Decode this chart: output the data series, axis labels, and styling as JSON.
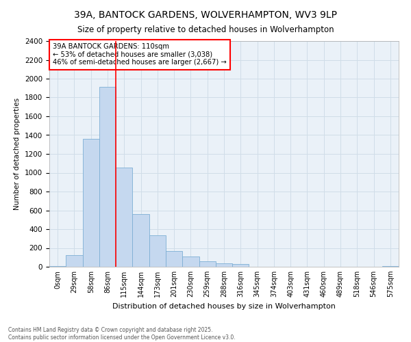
{
  "title": "39A, BANTOCK GARDENS, WOLVERHAMPTON, WV3 9LP",
  "subtitle": "Size of property relative to detached houses in Wolverhampton",
  "xlabel": "Distribution of detached houses by size in Wolverhampton",
  "ylabel": "Number of detached properties",
  "bar_color": "#c5d8ef",
  "bar_edge_color": "#7dafd4",
  "background_color": "#eaf1f8",
  "grid_color": "#d0dde8",
  "bin_labels": [
    "0sqm",
    "29sqm",
    "58sqm",
    "86sqm",
    "115sqm",
    "144sqm",
    "173sqm",
    "201sqm",
    "230sqm",
    "259sqm",
    "288sqm",
    "316sqm",
    "345sqm",
    "374sqm",
    "403sqm",
    "431sqm",
    "460sqm",
    "489sqm",
    "518sqm",
    "546sqm",
    "575sqm"
  ],
  "bar_values": [
    10,
    125,
    1360,
    1910,
    1055,
    560,
    335,
    170,
    110,
    60,
    35,
    28,
    0,
    0,
    0,
    0,
    0,
    0,
    0,
    0,
    10
  ],
  "ylim": [
    0,
    2400
  ],
  "yticks": [
    0,
    200,
    400,
    600,
    800,
    1000,
    1200,
    1400,
    1600,
    1800,
    2000,
    2200,
    2400
  ],
  "vline_position": 3.5,
  "vline_color": "red",
  "annotation_text": "39A BANTOCK GARDENS: 110sqm\n← 53% of detached houses are smaller (3,038)\n46% of semi-detached houses are larger (2,667) →",
  "annotation_box_color": "white",
  "annotation_box_edge": "red",
  "footnote": "Contains HM Land Registry data © Crown copyright and database right 2025.\nContains public sector information licensed under the Open Government Licence v3.0.",
  "fig_width": 6.0,
  "fig_height": 5.0,
  "dpi": 100
}
